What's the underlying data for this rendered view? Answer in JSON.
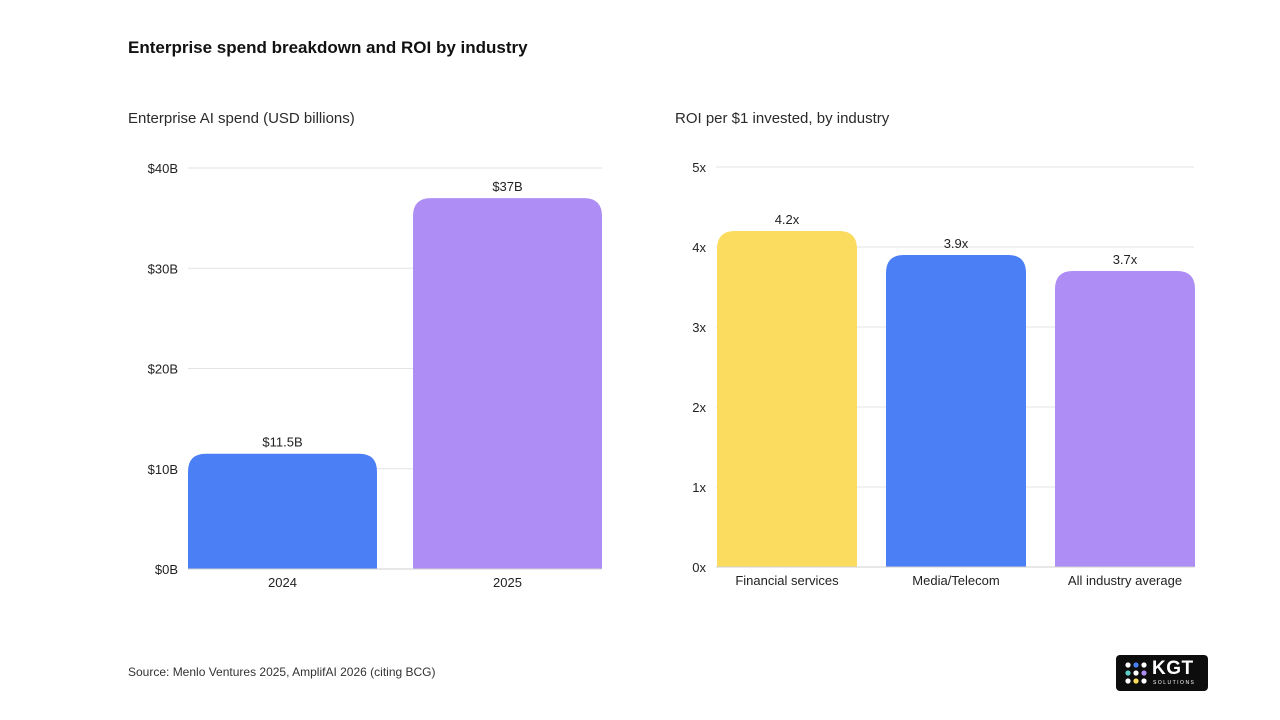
{
  "page": {
    "title": "Enterprise spend breakdown and ROI by industry",
    "source": "Source: Menlo Ventures 2025, AmplifAI 2026 (citing BCG)",
    "logo": {
      "word": "KGT",
      "sub": "SOLUTIONS"
    }
  },
  "chart_data": [
    {
      "type": "bar",
      "title": "Enterprise AI spend (USD billions)",
      "categories": [
        "2024",
        "2025"
      ],
      "values": [
        11.5,
        37
      ],
      "data_labels": [
        "$11.5B",
        "$37B"
      ],
      "colors": [
        "#4a7ff5",
        "#ae8df4"
      ],
      "ylim": [
        0,
        40
      ],
      "yticks": [
        0,
        10,
        20,
        30,
        40
      ],
      "ytick_labels": [
        "$0B",
        "$10B",
        "$20B",
        "$30B",
        "$40B"
      ],
      "xlabel": "",
      "ylabel": "",
      "grid": true
    },
    {
      "type": "bar",
      "title": "ROI per $1 invested, by industry",
      "categories": [
        "Financial services",
        "Media/Telecom",
        "All industry average"
      ],
      "values": [
        4.2,
        3.9,
        3.7
      ],
      "data_labels": [
        "4.2x",
        "3.9x",
        "3.7x"
      ],
      "colors": [
        "#fcdc5e",
        "#4a7ff5",
        "#ae8df4"
      ],
      "ylim": [
        0,
        5
      ],
      "yticks": [
        0,
        1,
        2,
        3,
        4,
        5
      ],
      "ytick_labels": [
        "0x",
        "1x",
        "2x",
        "3x",
        "4x",
        "5x"
      ],
      "xlabel": "",
      "ylabel": "",
      "grid": true
    }
  ]
}
